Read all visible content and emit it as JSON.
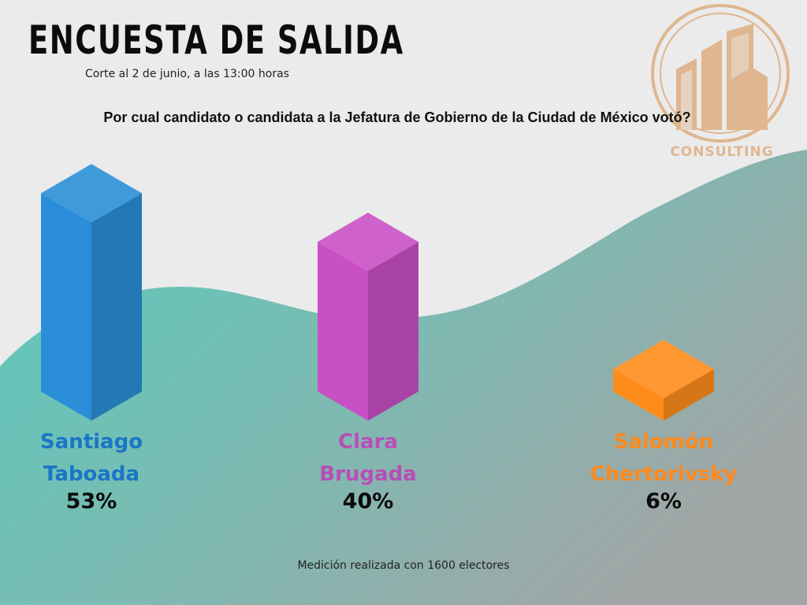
{
  "header": {
    "title": "ENCUESTA DE SALIDA",
    "subtitle": "Corte al 2 de junio, a las 13:00 horas"
  },
  "logo": {
    "text": "CONSULTING"
  },
  "chart_data": {
    "type": "bar",
    "title": "Por cual candidato o candidata a la Jefatura de Gobierno de la Ciudad de México votó?",
    "categories": [
      "Santiago Taboada",
      "Clara Brugada",
      "Salomón Chertorivsky"
    ],
    "values": [
      53,
      40,
      6
    ],
    "value_labels": [
      "53%",
      "40%",
      "6%"
    ],
    "units": "%",
    "colors": [
      "#2a8fd8",
      "#c94fc4",
      "#ff8c1a"
    ],
    "grid": false,
    "legend": "none"
  },
  "candidates": [
    {
      "line1": "Santiago",
      "line2": "Taboada",
      "percent": "53%",
      "color": "#1976c6"
    },
    {
      "line1": "Clara",
      "line2": "Brugada",
      "percent": "40%",
      "color": "#b94db8"
    },
    {
      "line1": "Salomón",
      "line2": "Chertorivsky",
      "percent": "6%",
      "color": "#ff8a1c"
    }
  ],
  "footer": "Medición realizada con 1600 electores",
  "colors": {
    "background": "#ebebeb",
    "wave_left": "#5cc9bc",
    "wave_right": "#9aa5a5",
    "logo": "#dfb68f"
  }
}
